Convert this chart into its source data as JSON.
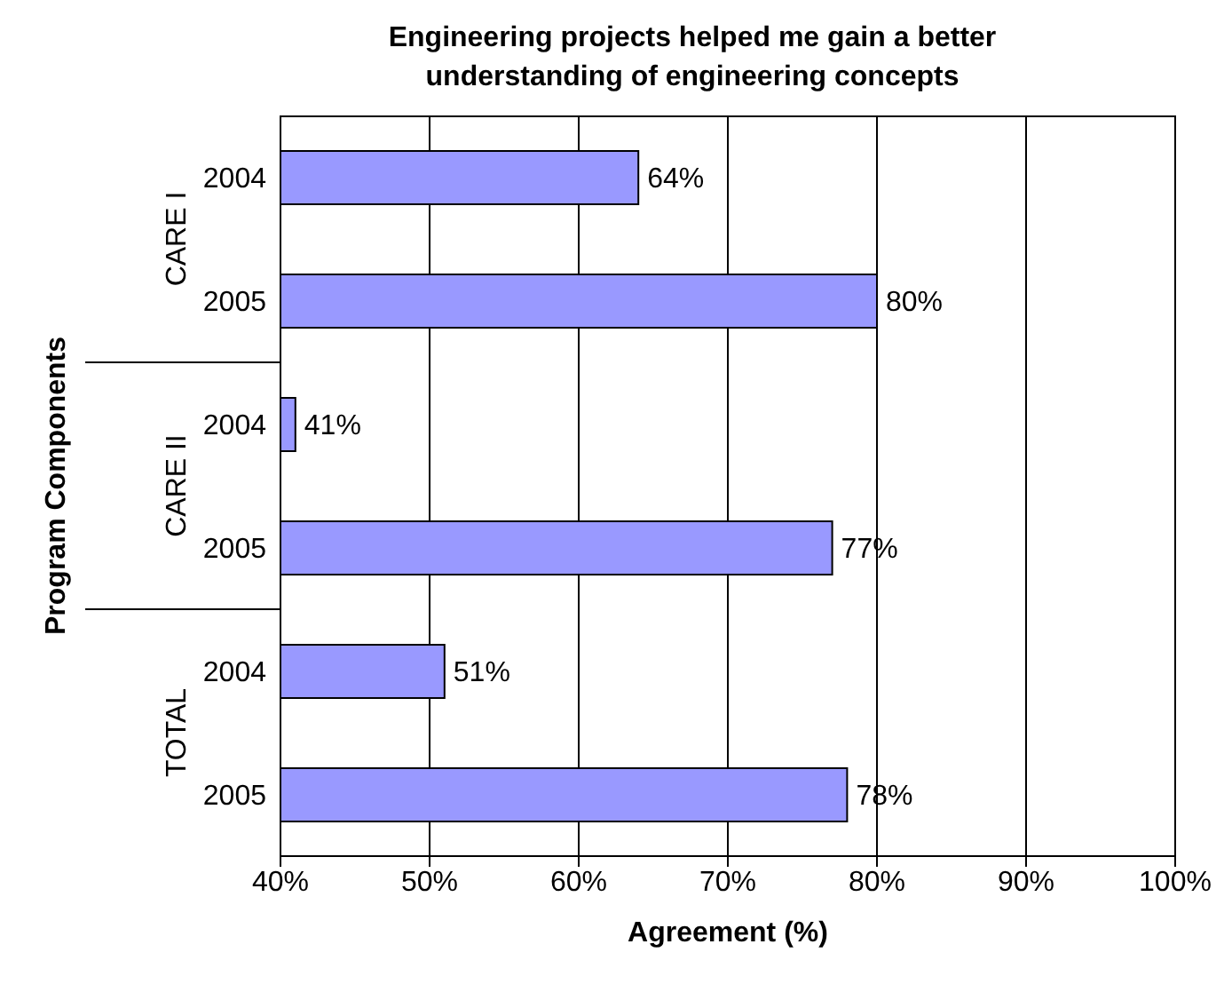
{
  "chart_data": {
    "type": "bar",
    "orientation": "horizontal",
    "title": "Engineering projects helped me gain a better understanding of engineering concepts",
    "xlabel": "Agreement (%)",
    "ylabel": "Program Components",
    "categories": [
      "2004",
      "2005",
      "2004",
      "2005",
      "2004",
      "2005"
    ],
    "values": [
      64,
      80,
      41,
      77,
      51,
      78
    ],
    "value_labels": [
      "64%",
      "80%",
      "41%",
      "77%",
      "51%",
      "78%"
    ],
    "color": "#9999ff",
    "annotations": [
      "CARE I",
      "CARE II",
      "TOTAL"
    ],
    "xlim": [
      40,
      100
    ],
    "xticks": [
      {
        "value": 40,
        "label": "40%"
      },
      {
        "value": 50,
        "label": "50%"
      },
      {
        "value": 60,
        "label": "60%"
      },
      {
        "value": 70,
        "label": "70%"
      },
      {
        "value": 80,
        "label": "80%"
      },
      {
        "value": 90,
        "label": "90%"
      },
      {
        "value": 100,
        "label": "100%"
      }
    ],
    "grid": "x",
    "legend": false
  }
}
